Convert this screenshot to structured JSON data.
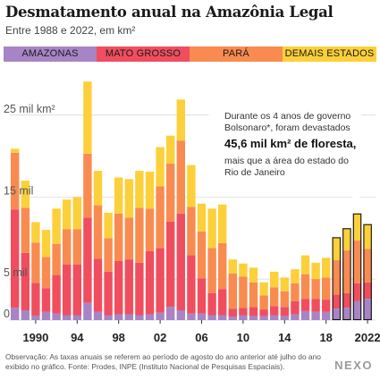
{
  "header": {
    "title": "Desmatamento anual na Amazônia Legal",
    "subtitle": "Entre 1988 e 2022, em km²"
  },
  "legend": [
    {
      "label": "AMAZONAS",
      "color": "#a784c6"
    },
    {
      "label": "MATO GROSSO",
      "color": "#f04e5e"
    },
    {
      "label": "PARÁ",
      "color": "#f98b50"
    },
    {
      "label": "DEMAIS ESTADOS",
      "color": "#fcd03a"
    }
  ],
  "annotation": {
    "line1": "Durante os 4 anos de governo",
    "line2": "Bolsonaro*, foram devastados",
    "highlight": "45,6 mil km² de floresta,",
    "line4": "mais que a área do estado do",
    "line5": "Rio de Janeiro"
  },
  "footnote": "Observação: As taxas anuais se referem ao período de agosto do ano anterior até julho do ano exibido no gráfico. Fonte: Prodes, INPE (Instituto Nacional de Pesquisas Espaciais).",
  "brand": "NEXO",
  "chart_data": {
    "type": "bar",
    "stacked": true,
    "title": "Desmatamento anual na Amazônia Legal",
    "subtitle": "Entre 1988 e 2022, em km²",
    "ylim": [
      0,
      30000
    ],
    "y_ticks": [
      0,
      5000,
      15000,
      25000
    ],
    "y_tick_labels": [
      "0",
      "5 mil",
      "15 mil",
      "25 mil km²"
    ],
    "x_tick_labels": [
      {
        "year": 1990,
        "label": "1990"
      },
      {
        "year": 1994,
        "label": "94"
      },
      {
        "year": 1998,
        "label": "98"
      },
      {
        "year": 2002,
        "label": "02"
      },
      {
        "year": 2006,
        "label": "06"
      },
      {
        "year": 2010,
        "label": "10"
      },
      {
        "year": 2014,
        "label": "14"
      },
      {
        "year": 2018,
        "label": "18"
      },
      {
        "year": 2022,
        "label": "2022"
      }
    ],
    "highlight_years": [
      2019,
      2020,
      2021,
      2022
    ],
    "categories": [
      1988,
      1989,
      1990,
      1991,
      1992,
      1993,
      1994,
      1995,
      1996,
      1997,
      1998,
      1999,
      2000,
      2001,
      2002,
      2003,
      2004,
      2005,
      2006,
      2007,
      2008,
      2009,
      2010,
      2011,
      2012,
      2013,
      2014,
      2015,
      2016,
      2017,
      2018,
      2019,
      2020,
      2021,
      2022
    ],
    "series": [
      {
        "name": "AMAZONAS",
        "values": [
          1500,
          1200,
          550,
          1000,
          800,
          600,
          600,
          2100,
          1000,
          600,
          700,
          700,
          600,
          700,
          900,
          1600,
          1200,
          800,
          800,
          600,
          600,
          400,
          600,
          500,
          500,
          600,
          500,
          700,
          1100,
          1000,
          1000,
          1400,
          1500,
          2300,
          2600
        ]
      },
      {
        "name": "MATO GROSSO",
        "values": [
          12000,
          7000,
          4000,
          2900,
          4700,
          6200,
          6200,
          10400,
          6500,
          5300,
          6500,
          6700,
          6400,
          7700,
          7900,
          10400,
          11800,
          7100,
          4300,
          2700,
          3200,
          1000,
          900,
          1100,
          800,
          1100,
          1100,
          1600,
          1500,
          1600,
          1500,
          1700,
          1800,
          2200,
          2000
        ]
      },
      {
        "name": "PARÁ",
        "values": [
          6900,
          5500,
          4900,
          3800,
          3800,
          4300,
          4300,
          7800,
          6500,
          4100,
          5800,
          5100,
          6700,
          5200,
          7500,
          7100,
          8900,
          5900,
          5700,
          5500,
          5600,
          4300,
          3800,
          3000,
          1700,
          2300,
          1900,
          2200,
          3000,
          2400,
          2700,
          4200,
          5200,
          5200,
          4100
        ]
      },
      {
        "name": "DEMAIS ESTADOS",
        "values": [
          500,
          3300,
          2500,
          3300,
          4300,
          3600,
          3900,
          8800,
          4200,
          3100,
          4400,
          4700,
          4500,
          4500,
          4800,
          3400,
          5000,
          5100,
          3400,
          4800,
          4700,
          1700,
          1600,
          1800,
          1600,
          1900,
          1700,
          1700,
          2300,
          2000,
          2400,
          2800,
          2700,
          3300,
          3000
        ]
      }
    ]
  }
}
